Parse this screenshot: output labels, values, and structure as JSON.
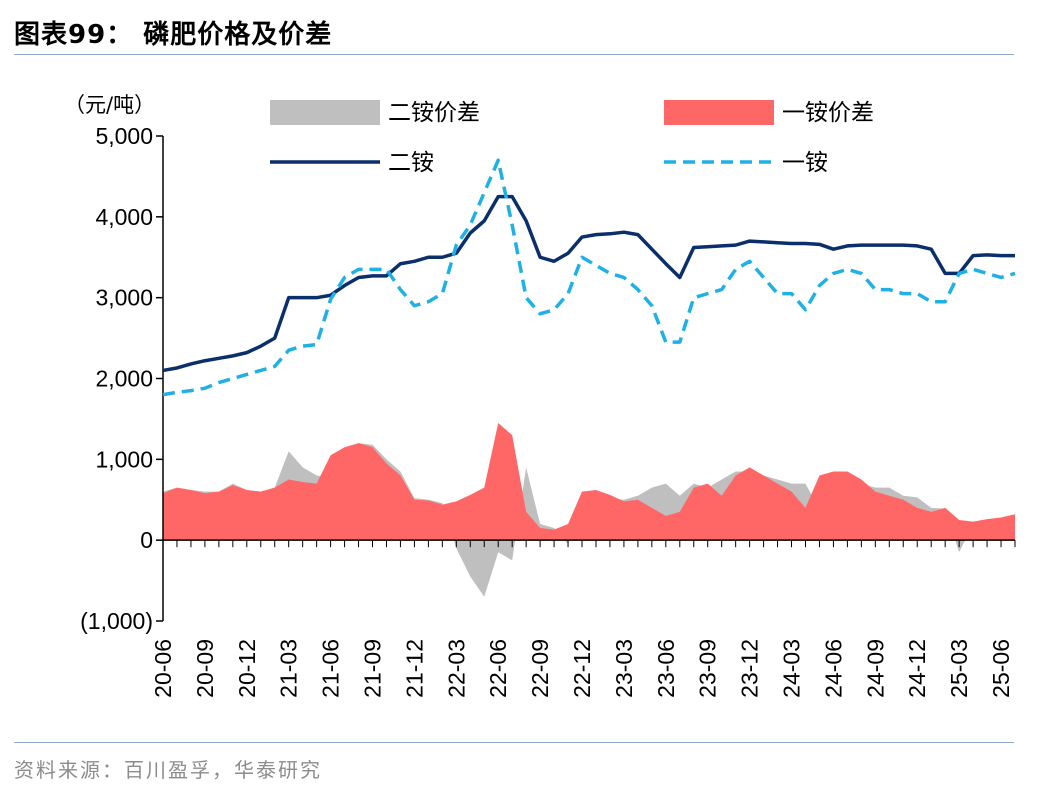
{
  "header": {
    "title": "图表99：  磷肥价格及价差"
  },
  "footer": {
    "source": "资料来源：百川盈孚，华泰研究"
  },
  "chart_data": {
    "type": "line",
    "unit_label": "（元/吨）",
    "ylim": [
      -1000,
      5000
    ],
    "yticks": [
      {
        "v": 5000,
        "label": "5,000"
      },
      {
        "v": 4000,
        "label": "4,000"
      },
      {
        "v": 3000,
        "label": "3,000"
      },
      {
        "v": 2000,
        "label": "2,000"
      },
      {
        "v": 1000,
        "label": "1,000"
      },
      {
        "v": 0,
        "label": "0"
      },
      {
        "v": -1000,
        "label": "(1,000)"
      }
    ],
    "x_start": "20-06",
    "x_end": "25-07",
    "xticks": [
      "20-06",
      "20-09",
      "20-12",
      "21-03",
      "21-06",
      "21-09",
      "21-12",
      "22-03",
      "22-06",
      "22-09",
      "22-12",
      "23-03",
      "23-06",
      "23-09",
      "23-12",
      "24-03",
      "24-06",
      "24-09",
      "24-12",
      "25-03",
      "25-06"
    ],
    "legend": [
      {
        "name": "二铵价差",
        "kind": "area",
        "color": "#bfbfbf"
      },
      {
        "name": "一铵价差",
        "kind": "area",
        "color": "#ff6666"
      },
      {
        "name": "二铵",
        "kind": "line",
        "color": "#0b2f6b",
        "dash": "solid"
      },
      {
        "name": "一铵",
        "kind": "line",
        "color": "#1fb0e6",
        "dash": "dashed"
      }
    ],
    "series": [
      {
        "name": "二铵",
        "type": "line",
        "x": [
          "20-06",
          "20-07",
          "20-08",
          "20-09",
          "20-10",
          "20-11",
          "20-12",
          "21-01",
          "21-02",
          "21-03",
          "21-04",
          "21-05",
          "21-06",
          "21-07",
          "21-08",
          "21-09",
          "21-10",
          "21-11",
          "21-12",
          "22-01",
          "22-02",
          "22-03",
          "22-04",
          "22-05",
          "22-06",
          "22-07",
          "22-08",
          "22-09",
          "22-10",
          "22-11",
          "22-12",
          "23-01",
          "23-02",
          "23-03",
          "23-04",
          "23-05",
          "23-06",
          "23-07",
          "23-08",
          "23-09",
          "23-10",
          "23-11",
          "23-12",
          "24-01",
          "24-02",
          "24-03",
          "24-04",
          "24-05",
          "24-06",
          "24-07",
          "24-08",
          "24-09",
          "24-10",
          "24-11",
          "24-12",
          "25-01",
          "25-02",
          "25-03",
          "25-04",
          "25-05",
          "25-06",
          "25-07"
        ],
        "values": [
          2100,
          2130,
          2180,
          2220,
          2250,
          2280,
          2320,
          2400,
          2500,
          3000,
          3000,
          3000,
          3030,
          3150,
          3250,
          3270,
          3270,
          3420,
          3450,
          3500,
          3500,
          3550,
          3800,
          3950,
          4250,
          4250,
          3950,
          3500,
          3450,
          3550,
          3750,
          3780,
          3790,
          3810,
          3780,
          3600,
          3420,
          3250,
          3620,
          3630,
          3640,
          3650,
          3700,
          3690,
          3680,
          3670,
          3670,
          3660,
          3600,
          3640,
          3650,
          3650,
          3650,
          3650,
          3640,
          3600,
          3300,
          3300,
          3520,
          3530,
          3520,
          3520
        ]
      },
      {
        "name": "一铵",
        "type": "line",
        "x": [
          "20-06",
          "20-07",
          "20-08",
          "20-09",
          "20-10",
          "20-11",
          "20-12",
          "21-01",
          "21-02",
          "21-03",
          "21-04",
          "21-05",
          "21-06",
          "21-07",
          "21-08",
          "21-09",
          "21-10",
          "21-11",
          "21-12",
          "22-01",
          "22-02",
          "22-03",
          "22-04",
          "22-05",
          "22-06",
          "22-07",
          "22-08",
          "22-09",
          "22-10",
          "22-11",
          "22-12",
          "23-01",
          "23-02",
          "23-03",
          "23-04",
          "23-05",
          "23-06",
          "23-07",
          "23-08",
          "23-09",
          "23-10",
          "23-11",
          "23-12",
          "24-01",
          "24-02",
          "24-03",
          "24-04",
          "24-05",
          "24-06",
          "24-07",
          "24-08",
          "24-09",
          "24-10",
          "24-11",
          "24-12",
          "25-01",
          "25-02",
          "25-03",
          "25-04",
          "25-05",
          "25-06",
          "25-07"
        ],
        "values": [
          1800,
          1830,
          1850,
          1880,
          1950,
          2000,
          2050,
          2100,
          2150,
          2350,
          2400,
          2420,
          2980,
          3250,
          3350,
          3350,
          3350,
          3100,
          2900,
          2950,
          3050,
          3650,
          3900,
          4300,
          4700,
          3900,
          3000,
          2800,
          2850,
          3050,
          3500,
          3400,
          3300,
          3250,
          3100,
          2900,
          2450,
          2450,
          3000,
          3050,
          3100,
          3350,
          3450,
          3250,
          3050,
          3050,
          2850,
          3150,
          3300,
          3350,
          3300,
          3100,
          3100,
          3050,
          3050,
          2950,
          2950,
          3300,
          3350,
          3300,
          3250,
          3300
        ]
      },
      {
        "name": "二铵价差",
        "type": "area",
        "x": [
          "20-06",
          "20-07",
          "20-08",
          "20-09",
          "20-10",
          "20-11",
          "20-12",
          "21-01",
          "21-02",
          "21-03",
          "21-04",
          "21-05",
          "21-06",
          "21-07",
          "21-08",
          "21-09",
          "21-10",
          "21-11",
          "21-12",
          "22-01",
          "22-02",
          "22-03",
          "22-04",
          "22-05",
          "22-06",
          "22-07",
          "22-08",
          "22-09",
          "22-10",
          "22-11",
          "22-12",
          "23-01",
          "23-02",
          "23-03",
          "23-04",
          "23-05",
          "23-06",
          "23-07",
          "23-08",
          "23-09",
          "23-10",
          "23-11",
          "23-12",
          "24-01",
          "24-02",
          "24-03",
          "24-04",
          "24-05",
          "24-06",
          "24-07",
          "24-08",
          "24-09",
          "24-10",
          "24-11",
          "24-12",
          "25-01",
          "25-02",
          "25-03",
          "25-04",
          "25-05",
          "25-06",
          "25-07"
        ],
        "values": [
          600,
          650,
          620,
          600,
          600,
          700,
          620,
          600,
          650,
          1100,
          900,
          800,
          780,
          1050,
          1200,
          1180,
          1000,
          850,
          520,
          500,
          460,
          -100,
          -450,
          -700,
          -150,
          -250,
          900,
          200,
          150,
          -50,
          550,
          560,
          520,
          500,
          550,
          650,
          700,
          550,
          700,
          650,
          750,
          850,
          850,
          800,
          750,
          700,
          700,
          380,
          780,
          800,
          700,
          650,
          650,
          550,
          530,
          400,
          390,
          -150,
          200,
          250,
          260,
          300
        ]
      },
      {
        "name": "一铵价差",
        "type": "area",
        "x": [
          "20-06",
          "20-07",
          "20-08",
          "20-09",
          "20-10",
          "20-11",
          "20-12",
          "21-01",
          "21-02",
          "21-03",
          "21-04",
          "21-05",
          "21-06",
          "21-07",
          "21-08",
          "21-09",
          "21-10",
          "21-11",
          "21-12",
          "22-01",
          "22-02",
          "22-03",
          "22-04",
          "22-05",
          "22-06",
          "22-07",
          "22-08",
          "22-09",
          "22-10",
          "22-11",
          "22-12",
          "23-01",
          "23-02",
          "23-03",
          "23-04",
          "23-05",
          "23-06",
          "23-07",
          "23-08",
          "23-09",
          "23-10",
          "23-11",
          "23-12",
          "24-01",
          "24-02",
          "24-03",
          "24-04",
          "24-05",
          "24-06",
          "24-07",
          "24-08",
          "24-09",
          "24-10",
          "24-11",
          "24-12",
          "25-01",
          "25-02",
          "25-03",
          "25-04",
          "25-05",
          "25-06",
          "25-07"
        ],
        "values": [
          580,
          650,
          620,
          580,
          600,
          680,
          620,
          600,
          650,
          750,
          720,
          700,
          1050,
          1150,
          1200,
          1150,
          950,
          800,
          500,
          490,
          440,
          480,
          560,
          650,
          1450,
          1300,
          350,
          150,
          130,
          200,
          600,
          620,
          560,
          480,
          500,
          400,
          300,
          350,
          650,
          700,
          550,
          800,
          900,
          800,
          700,
          600,
          400,
          800,
          850,
          850,
          750,
          600,
          550,
          500,
          400,
          350,
          400,
          250,
          230,
          260,
          280,
          320
        ]
      }
    ]
  }
}
